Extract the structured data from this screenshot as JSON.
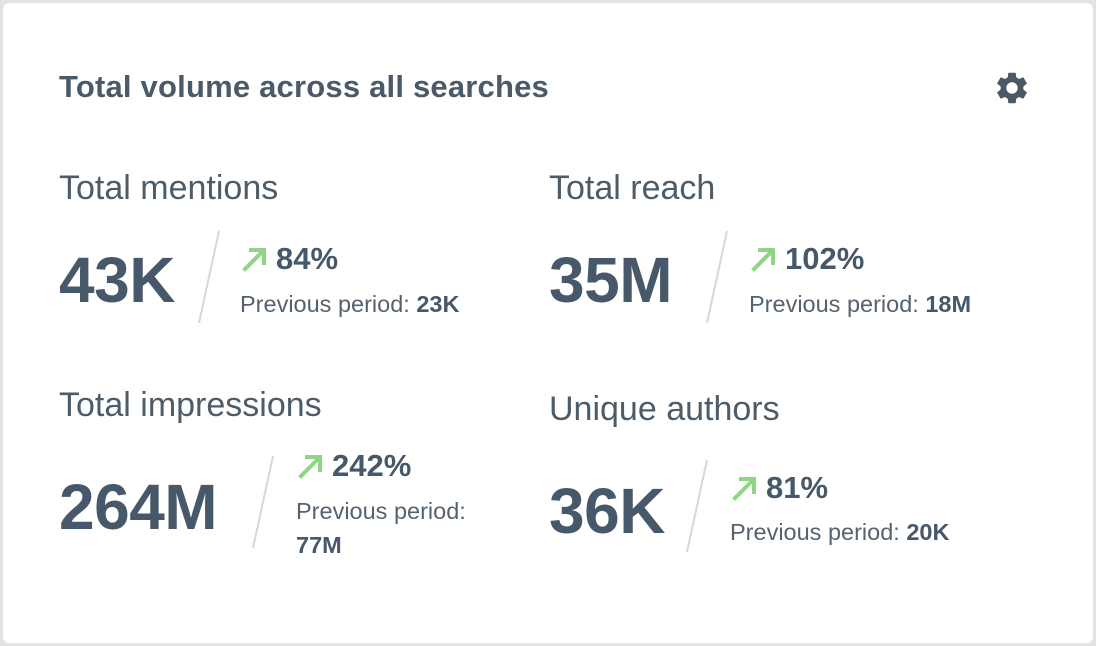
{
  "widget": {
    "title": "Total volume across all searches",
    "settings_icon": "gear-icon"
  },
  "colors": {
    "text": "#46586a",
    "trend_up": "#8fd585",
    "divider": "#d5d8db"
  },
  "metrics": [
    {
      "label": "Total mentions",
      "value": "43K",
      "change": "84%",
      "trend": "up",
      "prev_label": "Previous period:",
      "prev_value": "23K"
    },
    {
      "label": "Total reach",
      "value": "35M",
      "change": "102%",
      "trend": "up",
      "prev_label": "Previous period:",
      "prev_value": "18M"
    },
    {
      "label": "Total impressions",
      "value": "264M",
      "change": "242%",
      "trend": "up",
      "prev_label": "Previous period:",
      "prev_value": "77M"
    },
    {
      "label": "Unique authors",
      "value": "36K",
      "change": "81%",
      "trend": "up",
      "prev_label": "Previous period:",
      "prev_value": "20K"
    }
  ]
}
